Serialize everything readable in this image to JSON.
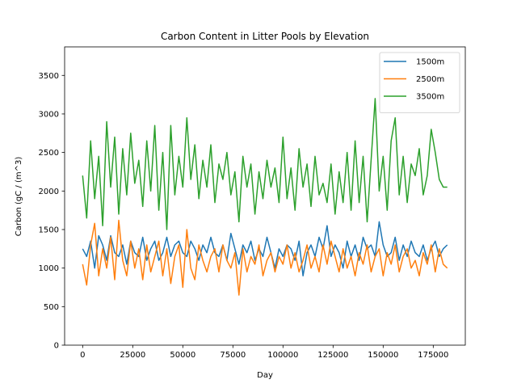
{
  "chart_data": {
    "type": "line",
    "title": "Carbon Content in Litter Pools by Elevation",
    "xlabel": "Day",
    "ylabel": "Carbon (gC / (m^3)",
    "xlim": [
      -9000,
      191000
    ],
    "ylim": [
      0,
      3870
    ],
    "xticks": [
      0,
      25000,
      50000,
      75000,
      100000,
      125000,
      150000,
      175000
    ],
    "xtick_labels": [
      "0",
      "25000",
      "50000",
      "75000",
      "100000",
      "125000",
      "150000",
      "175000"
    ],
    "yticks": [
      0,
      500,
      1000,
      1500,
      2000,
      2500,
      3000,
      3500
    ],
    "ytick_labels": [
      "0",
      "500",
      "1000",
      "1500",
      "2000",
      "2500",
      "3000",
      "3500"
    ],
    "grid": false,
    "legend_position": "top-right",
    "series": [
      {
        "name": "1500m",
        "color": "#1f77b4",
        "x": [
          0,
          2000,
          4000,
          6000,
          8000,
          10000,
          12000,
          14000,
          16000,
          18000,
          20000,
          22000,
          24000,
          26000,
          28000,
          30000,
          32000,
          34000,
          36000,
          38000,
          40000,
          42000,
          44000,
          46000,
          48000,
          50000,
          52000,
          54000,
          56000,
          58000,
          60000,
          62000,
          64000,
          66000,
          68000,
          70000,
          72000,
          74000,
          76000,
          78000,
          80000,
          82000,
          84000,
          86000,
          88000,
          90000,
          92000,
          94000,
          96000,
          98000,
          100000,
          102000,
          104000,
          106000,
          108000,
          110000,
          112000,
          114000,
          116000,
          118000,
          120000,
          122000,
          124000,
          126000,
          128000,
          130000,
          132000,
          134000,
          136000,
          138000,
          140000,
          142000,
          144000,
          146000,
          148000,
          150000,
          152000,
          154000,
          156000,
          158000,
          160000,
          162000,
          164000,
          166000,
          168000,
          170000,
          172000,
          174000,
          176000,
          178000,
          180000,
          182000
        ],
        "values": [
          1250,
          1150,
          1350,
          1000,
          1420,
          1300,
          1100,
          1420,
          1200,
          1150,
          1300,
          1050,
          1350,
          1200,
          1150,
          1400,
          1100,
          1250,
          1350,
          1100,
          1200,
          1400,
          1150,
          1300,
          1350,
          1200,
          1150,
          1350,
          1250,
          1100,
          1300,
          1200,
          1400,
          1200,
          1150,
          1300,
          1100,
          1450,
          1250,
          1050,
          1300,
          1200,
          1350,
          1100,
          1250,
          1150,
          1400,
          1200,
          1000,
          1250,
          1150,
          1300,
          1250,
          1100,
          1350,
          900,
          1200,
          1300,
          1150,
          1400,
          1250,
          1550,
          1150,
          1300,
          1200,
          1000,
          1350,
          1150,
          1300,
          1100,
          1400,
          1250,
          1300,
          1150,
          1600,
          1300,
          1150,
          1200,
          1400,
          1100,
          1300,
          1150,
          1350,
          1200,
          1150,
          1300,
          1100,
          1250,
          1350,
          1150,
          1250,
          1300
        ]
      },
      {
        "name": "2500m",
        "color": "#ff7f0e",
        "x": [
          0,
          2000,
          4000,
          6000,
          8000,
          10000,
          12000,
          14000,
          16000,
          18000,
          20000,
          22000,
          24000,
          26000,
          28000,
          30000,
          32000,
          34000,
          36000,
          38000,
          40000,
          42000,
          44000,
          46000,
          48000,
          50000,
          52000,
          54000,
          56000,
          58000,
          60000,
          62000,
          64000,
          66000,
          68000,
          70000,
          72000,
          74000,
          76000,
          78000,
          80000,
          82000,
          84000,
          86000,
          88000,
          90000,
          92000,
          94000,
          96000,
          98000,
          100000,
          102000,
          104000,
          106000,
          108000,
          110000,
          112000,
          114000,
          116000,
          118000,
          120000,
          122000,
          124000,
          126000,
          128000,
          130000,
          132000,
          134000,
          136000,
          138000,
          140000,
          142000,
          144000,
          146000,
          148000,
          150000,
          152000,
          154000,
          156000,
          158000,
          160000,
          162000,
          164000,
          166000,
          168000,
          170000,
          172000,
          174000,
          176000,
          178000,
          180000,
          182000
        ],
        "values": [
          1050,
          780,
          1300,
          1580,
          900,
          1250,
          1000,
          1400,
          850,
          1620,
          1100,
          900,
          1350,
          1000,
          1250,
          850,
          1300,
          950,
          1150,
          1350,
          900,
          1250,
          800,
          1150,
          1300,
          750,
          1500,
          1000,
          850,
          1300,
          1100,
          950,
          1150,
          1250,
          950,
          1300,
          1100,
          1000,
          1200,
          650,
          1250,
          950,
          1150,
          1050,
          1300,
          900,
          1100,
          1200,
          950,
          1150,
          1050,
          1300,
          1000,
          1200,
          950,
          1100,
          1300,
          1000,
          1150,
          950,
          1300,
          1050,
          1350,
          1150,
          950,
          1250,
          1000,
          1150,
          900,
          1200,
          1050,
          1300,
          950,
          1150,
          1250,
          900,
          1200,
          1050,
          1300,
          950,
          1150,
          1250,
          1000,
          1100,
          900,
          1200,
          1050,
          1300,
          950,
          1250,
          1050,
          1000
        ]
      },
      {
        "name": "3500m",
        "color": "#2ca02c",
        "x": [
          0,
          2000,
          4000,
          6000,
          8000,
          10000,
          12000,
          14000,
          16000,
          18000,
          20000,
          22000,
          24000,
          26000,
          28000,
          30000,
          32000,
          34000,
          36000,
          38000,
          40000,
          42000,
          44000,
          46000,
          48000,
          50000,
          52000,
          54000,
          56000,
          58000,
          60000,
          62000,
          64000,
          66000,
          68000,
          70000,
          72000,
          74000,
          76000,
          78000,
          80000,
          82000,
          84000,
          86000,
          88000,
          90000,
          92000,
          94000,
          96000,
          98000,
          100000,
          102000,
          104000,
          106000,
          108000,
          110000,
          112000,
          114000,
          116000,
          118000,
          120000,
          122000,
          124000,
          126000,
          128000,
          130000,
          132000,
          134000,
          136000,
          138000,
          140000,
          142000,
          144000,
          146000,
          148000,
          150000,
          152000,
          154000,
          156000,
          158000,
          160000,
          162000,
          164000,
          166000,
          168000,
          170000,
          172000,
          174000,
          176000,
          178000,
          180000,
          182000
        ],
        "values": [
          2200,
          1650,
          2650,
          1900,
          2450,
          1550,
          2900,
          2050,
          2700,
          1700,
          2550,
          1950,
          2750,
          2100,
          2400,
          1800,
          2650,
          2000,
          2850,
          1750,
          2500,
          1500,
          2850,
          1950,
          2450,
          2050,
          2950,
          2150,
          2600,
          1900,
          2400,
          2050,
          2600,
          1850,
          2350,
          2150,
          2500,
          1950,
          2250,
          1600,
          2450,
          2050,
          2350,
          1700,
          2250,
          1900,
          2400,
          2050,
          2300,
          1850,
          2700,
          1900,
          2300,
          1750,
          2550,
          2050,
          2350,
          1800,
          2450,
          1950,
          2100,
          1850,
          2350,
          1700,
          2250,
          1850,
          2500,
          1750,
          2650,
          1850,
          2450,
          1600,
          2400,
          3200,
          2000,
          2450,
          1750,
          2650,
          2950,
          1950,
          2450,
          1850,
          2350,
          2200,
          2550,
          1950,
          2200,
          2800,
          2500,
          2150,
          2050,
          2050
        ]
      }
    ]
  }
}
